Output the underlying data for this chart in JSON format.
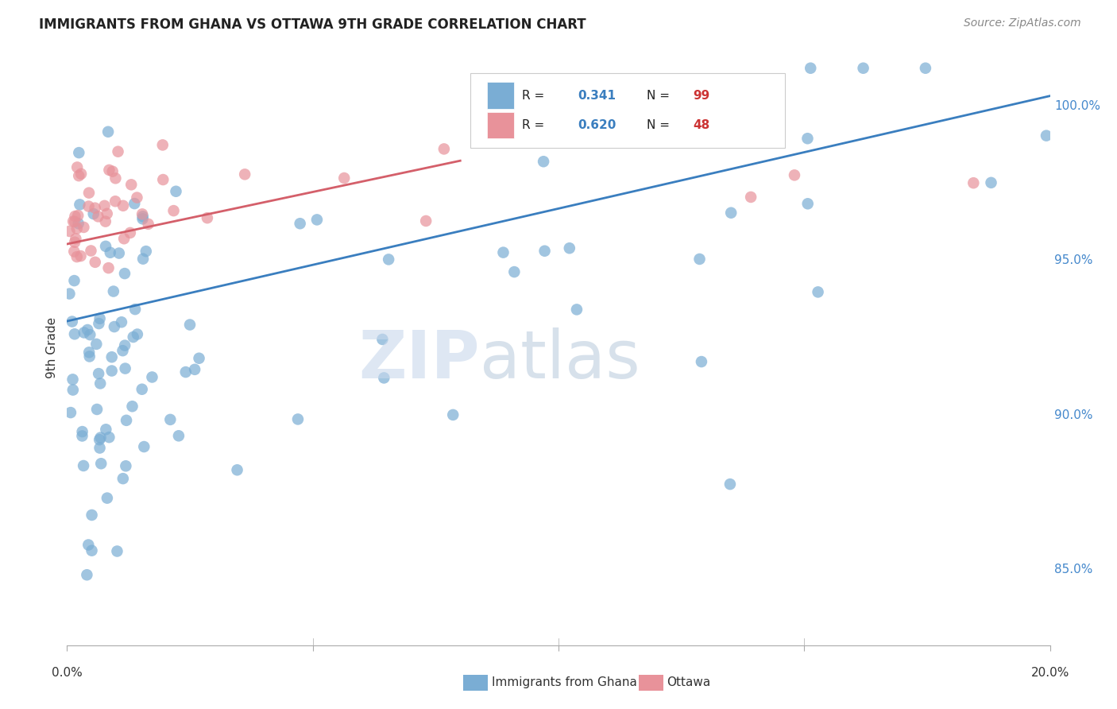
{
  "title": "IMMIGRANTS FROM GHANA VS OTTAWA 9TH GRADE CORRELATION CHART",
  "source": "Source: ZipAtlas.com",
  "ylabel": "9th Grade",
  "yticks": [
    85.0,
    90.0,
    95.0,
    100.0
  ],
  "ytick_labels": [
    "85.0%",
    "90.0%",
    "95.0%",
    "100.0%"
  ],
  "xmin": 0.0,
  "xmax": 20.0,
  "ymin": 82.5,
  "ymax": 101.8,
  "blue_color": "#7aadd4",
  "pink_color": "#e8929a",
  "blue_line_color": "#3a7ebf",
  "pink_line_color": "#d45f6a",
  "blue_trend_x": [
    0.0,
    20.0
  ],
  "blue_trend_y": [
    93.0,
    100.3
  ],
  "pink_trend_x": [
    0.0,
    8.0
  ],
  "pink_trend_y": [
    95.5,
    98.2
  ],
  "bottom_legend_blue": "Immigrants from Ghana",
  "bottom_legend_pink": "Ottawa"
}
